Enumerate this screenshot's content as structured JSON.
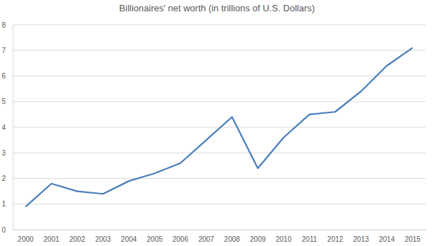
{
  "chart_data": {
    "type": "line",
    "title": "Billionaires' net worth (in trillions of U.S. Dollars)",
    "categories": [
      "2000",
      "2001",
      "2002",
      "2003",
      "2004",
      "2005",
      "2006",
      "2007",
      "2008",
      "2009",
      "2010",
      "2011",
      "2012",
      "2013",
      "2014",
      "2015"
    ],
    "values": [
      0.9,
      1.8,
      1.5,
      1.4,
      1.9,
      2.2,
      2.6,
      3.5,
      4.4,
      2.4,
      3.6,
      4.5,
      4.6,
      5.4,
      6.4,
      7.1
    ],
    "color": "#4a7ebb",
    "ylim": [
      0,
      8
    ],
    "yticks": [
      0,
      1,
      2,
      3,
      4,
      5,
      6,
      7,
      8
    ],
    "grid": true
  }
}
